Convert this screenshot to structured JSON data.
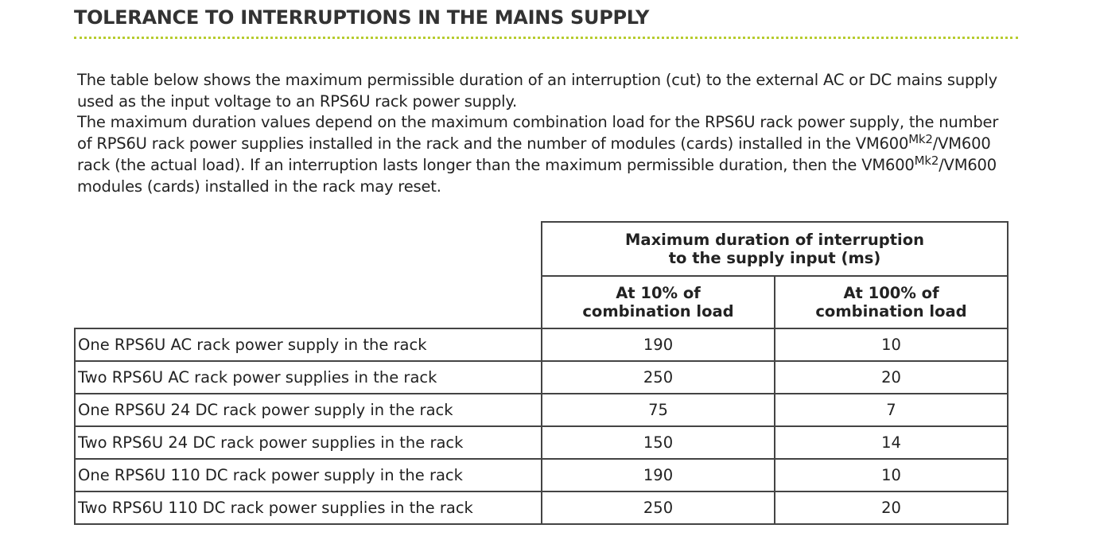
{
  "header": {
    "title": "TOLERANCE TO INTERRUPTIONS IN THE MAINS SUPPLY"
  },
  "intro": {
    "paragraphs": [
      [
        "The table below shows the maximum permissible duration of an interruption (cut) to the external AC or DC mains supply used as the input voltage to an RPS6U rack power supply."
      ],
      [
        "The maximum duration values depend on the maximum combination load for the RPS6U rack power supply, the number of RPS6U rack power supplies installed in the rack and the number of modules (cards) installed in the VM600",
        "Mk2",
        "/VM600 rack (the actual load). If an interruption lasts longer than the maximum permissible duration, then the VM600",
        "Mk2",
        "/VM600 modules (cards) installed in the rack may reset."
      ]
    ]
  },
  "table": {
    "group_header": "Maximum duration of interruption to the supply input (ms)",
    "columns": [
      "At 10% of combination load",
      "At 100% of combination load"
    ],
    "rows": [
      [
        "One RPS6U AC rack power supply in the rack",
        190,
        10
      ],
      [
        "Two RPS6U AC rack power supplies in the rack",
        250,
        20
      ],
      [
        "One RPS6U 24 DC rack power supply in the rack",
        75,
        7
      ],
      [
        "Two RPS6U 24 DC rack power supplies in the rack",
        150,
        14
      ],
      [
        "One RPS6U 110 DC rack power supply in the rack",
        190,
        10
      ],
      [
        "Two RPS6U 110 DC rack power supplies in the rack",
        250,
        20
      ]
    ]
  }
}
